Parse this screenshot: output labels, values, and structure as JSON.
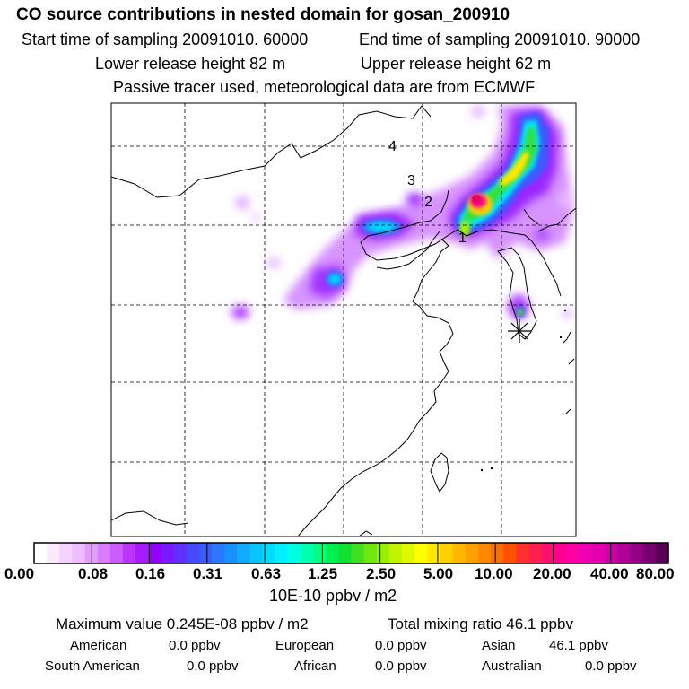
{
  "header": {
    "title": "CO  source contributions in nested domain for gosan_200910",
    "start_label": "Start time of sampling 20091010. 60000",
    "end_label": "End time of sampling 20091010. 90000",
    "lower_label": "Lower release height   82 m",
    "upper_label": "Upper release height   62 m",
    "note": "Passive tracer used, meteorological data are from ECMWF"
  },
  "map": {
    "markers": [
      "1",
      "2",
      "3",
      "4"
    ],
    "receptor_symbol": "*"
  },
  "colorbar": {
    "ticks": [
      "0.00",
      "0.08",
      "0.16",
      "0.31",
      "0.63",
      "1.25",
      "2.50",
      "5.00",
      "10.00",
      "20.00",
      "40.00",
      "80.00"
    ],
    "unit": "10E-10 ppbv / m2",
    "colors": [
      "#ffffff",
      "#fbeaff",
      "#f5d2ff",
      "#eebcff",
      "#e59cff",
      "#d97cff",
      "#cc5cff",
      "#bb33ff",
      "#a81aff",
      "#9400ff",
      "#7a18ff",
      "#6030ff",
      "#4848ff",
      "#3a5cff",
      "#2a78ff",
      "#1a90ff",
      "#10aaff",
      "#08c4ff",
      "#00dcff",
      "#00f0ff",
      "#00ffe0",
      "#00ffb0",
      "#00ff80",
      "#00f050",
      "#10e030",
      "#40e020",
      "#70e810",
      "#98f000",
      "#c0f400",
      "#e0f800",
      "#ffff00",
      "#ffe800",
      "#ffd000",
      "#ffb800",
      "#ffa000",
      "#ff8800",
      "#ff6c00",
      "#ff5000",
      "#ff3030",
      "#ff2050",
      "#ff1070",
      "#ff0090",
      "#ff00a8",
      "#f000b0",
      "#e000b0",
      "#cc00a8",
      "#b00098",
      "#940088",
      "#780070",
      "#580058"
    ]
  },
  "summary": {
    "max_label": "Maximum value  0.245E-08 ppbv / m2",
    "total_label": "Total mixing ratio       46.1 ppbv",
    "regions": [
      {
        "name": "American",
        "value": "0.0 ppbv"
      },
      {
        "name": "European",
        "value": "0.0 ppbv"
      },
      {
        "name": "Asian",
        "value": "46.1 ppbv"
      },
      {
        "name": "South American",
        "value": "0.0 ppbv"
      },
      {
        "name": "African",
        "value": "0.0 ppbv"
      },
      {
        "name": "Australian",
        "value": "0.0 ppbv"
      }
    ]
  }
}
